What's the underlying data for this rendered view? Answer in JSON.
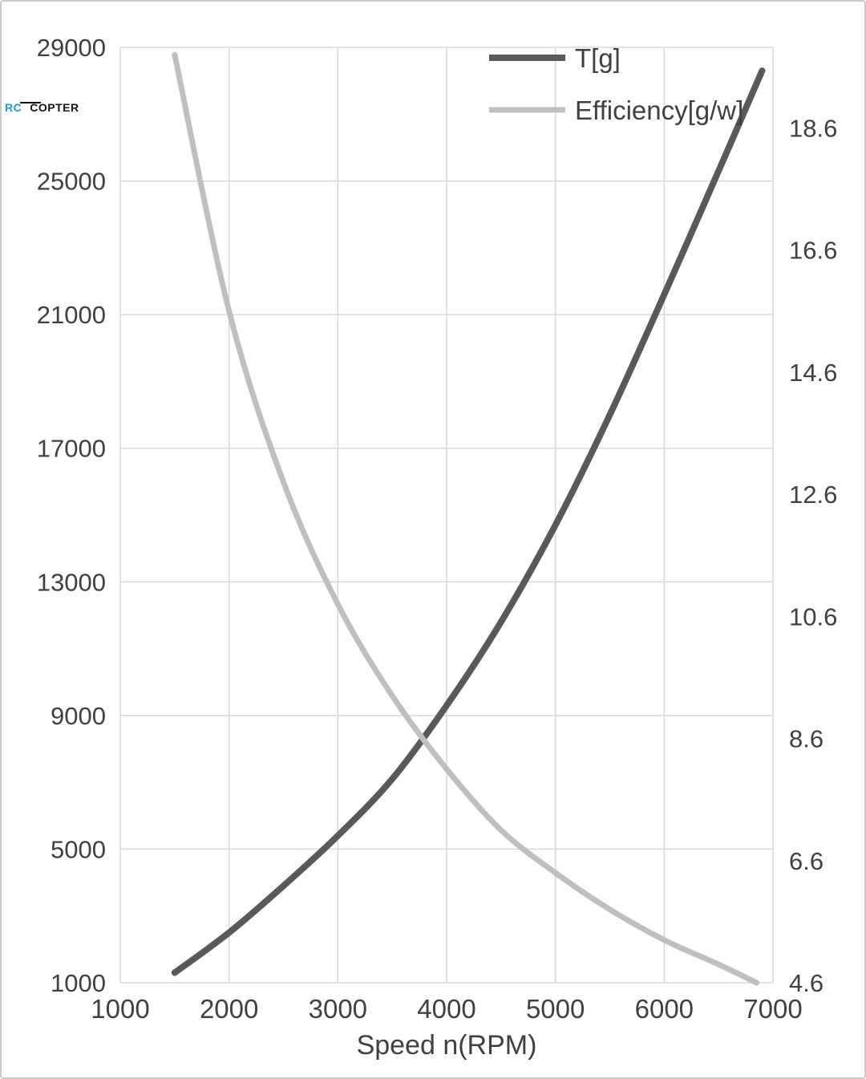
{
  "logo": {
    "rc": "RC",
    "copter": "COPTER"
  },
  "chart_data": {
    "type": "line",
    "title": "",
    "x_axis": {
      "title": "Speed n(RPM)",
      "ticks": [
        1000,
        2000,
        3000,
        4000,
        5000,
        6000,
        7000
      ],
      "range": [
        1000,
        7000
      ]
    },
    "y_left": {
      "ticks": [
        1000,
        5000,
        9000,
        13000,
        17000,
        21000,
        25000,
        29000
      ],
      "range": [
        1000,
        29000
      ]
    },
    "y_right": {
      "ticks": [
        4.6,
        6.6,
        8.6,
        10.6,
        12.6,
        14.6,
        16.6,
        18.6
      ],
      "range": [
        4.6,
        19.92
      ]
    },
    "grid": true,
    "legend_position": "top-right",
    "series": [
      {
        "name": "T[g]",
        "axis": "left",
        "color": "#595959",
        "width": 8,
        "x": [
          1500,
          2000,
          2500,
          3000,
          3500,
          4000,
          4500,
          5000,
          5500,
          6000,
          6500,
          6900
        ],
        "values": [
          1300,
          2500,
          3900,
          5400,
          7100,
          9300,
          11800,
          14700,
          18000,
          21600,
          25300,
          28300
        ]
      },
      {
        "name": "Efficiency[g/w]",
        "axis": "right",
        "color": "#bfbfbf",
        "width": 7,
        "x": [
          1500,
          2000,
          2500,
          3000,
          3500,
          4000,
          4500,
          5000,
          5500,
          6000,
          6500,
          6850
        ],
        "values": [
          19.8,
          15.6,
          12.8,
          10.8,
          9.3,
          8.1,
          7.1,
          6.4,
          5.8,
          5.3,
          4.9,
          4.6
        ]
      }
    ]
  }
}
